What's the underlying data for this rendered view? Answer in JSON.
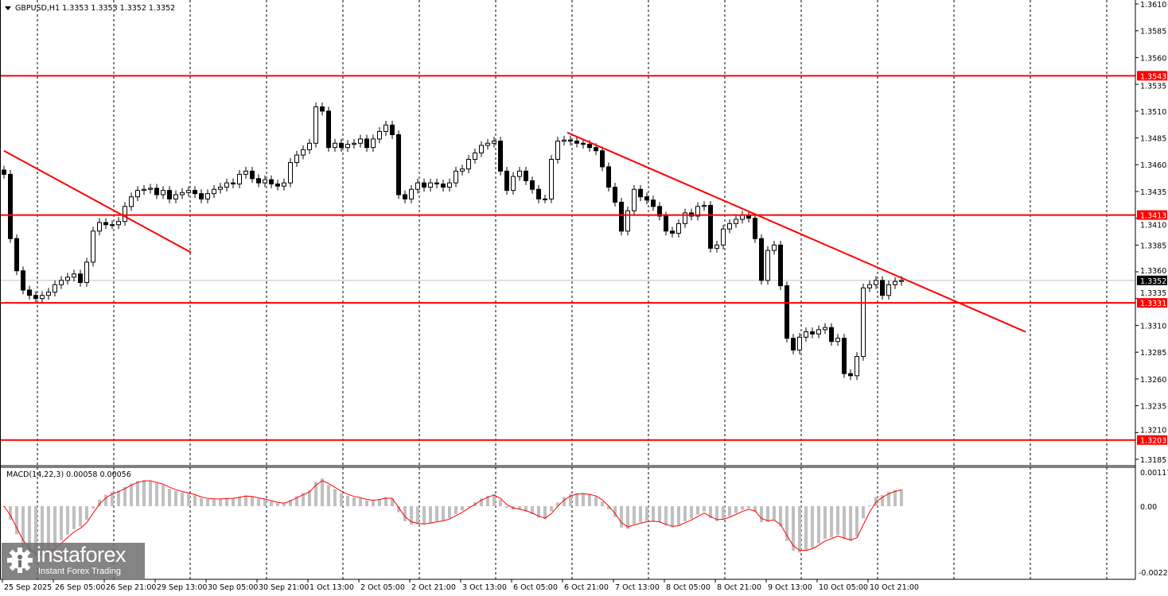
{
  "header": {
    "title": "GBPUSD,H1  1.3353 1.3353 1.3352 1.3352",
    "menu_icon": "triangle-down-icon"
  },
  "logo": {
    "name": "instaforex",
    "tagline": "Instant Forex Trading"
  },
  "colors": {
    "level": "#ff0000",
    "trendline": "#ff0000",
    "bull": "#ffffff",
    "bear": "#000000",
    "grid": "#000000",
    "histogram": "#c0c0c0",
    "signal": "#ff0000",
    "price_line": "#c0c0c0"
  },
  "chart_data": [
    {
      "type": "candlestick",
      "symbol": "GBPUSD",
      "timeframe": "H1",
      "ylim": [
        1.3185,
        1.361
      ],
      "y_ticks": [
        "1.3610",
        "1.3585",
        "1.3560",
        "1.3535",
        "1.3510",
        "1.3485",
        "1.3460",
        "1.3435",
        "1.3410",
        "1.3385",
        "1.3360",
        "1.3335",
        "1.3310",
        "1.3285",
        "1.3260",
        "1.3235",
        "1.3210",
        "1.3185"
      ],
      "x_ticks": [
        "25 Sep 2025",
        "26 Sep 05:00",
        "26 Sep 21:00",
        "29 Sep 13:00",
        "30 Sep 05:00",
        "30 Sep 21:00",
        "1 Oct 13:00",
        "2 Oct 05:00",
        "2 Oct 21:00",
        "3 Oct 13:00",
        "6 Oct 05:00",
        "6 Oct 21:00",
        "7 Oct 13:00",
        "8 Oct 05:00",
        "8 Oct 21:00",
        "9 Oct 13:00",
        "10 Oct 05:00",
        "10 Oct 21:00"
      ],
      "grid": "vertical dashed",
      "close": [
        1.3451,
        1.3391,
        1.3361,
        1.3343,
        1.3338,
        1.3335,
        1.3338,
        1.3341,
        1.3348,
        1.3352,
        1.3355,
        1.3358,
        1.335,
        1.3369,
        1.3398,
        1.3406,
        1.3404,
        1.3404,
        1.3407,
        1.3421,
        1.343,
        1.3436,
        1.3437,
        1.3438,
        1.3432,
        1.3436,
        1.3428,
        1.3432,
        1.3434,
        1.3436,
        1.3433,
        1.3428,
        1.3433,
        1.3437,
        1.3439,
        1.3443,
        1.3442,
        1.3451,
        1.3454,
        1.3447,
        1.3443,
        1.3446,
        1.3442,
        1.344,
        1.3443,
        1.3462,
        1.3469,
        1.3474,
        1.348,
        1.3514,
        1.351,
        1.3476,
        1.348,
        1.3476,
        1.3479,
        1.348,
        1.3484,
        1.3476,
        1.3484,
        1.3491,
        1.3497,
        1.3488,
        1.3432,
        1.3428,
        1.3437,
        1.3443,
        1.3439,
        1.3443,
        1.3442,
        1.3439,
        1.3443,
        1.3454,
        1.3456,
        1.3465,
        1.3471,
        1.3478,
        1.348,
        1.3482,
        1.3454,
        1.3436,
        1.3449,
        1.3454,
        1.3445,
        1.3437,
        1.3428,
        1.3428,
        1.3465,
        1.3482,
        1.3483,
        1.3482,
        1.348,
        1.3479,
        1.3476,
        1.3473,
        1.3458,
        1.3439,
        1.3425,
        1.3398,
        1.3417,
        1.3437,
        1.343,
        1.3427,
        1.3421,
        1.3412,
        1.3398,
        1.3396,
        1.3405,
        1.3415,
        1.3412,
        1.3421,
        1.3422,
        1.3382,
        1.3385,
        1.34,
        1.3405,
        1.3409,
        1.3413,
        1.341,
        1.3391,
        1.3352,
        1.338,
        1.3385,
        1.3347,
        1.3298,
        1.3287,
        1.3299,
        1.3304,
        1.3302,
        1.3306,
        1.3308,
        1.3295,
        1.3298,
        1.3265,
        1.3263,
        1.3281,
        1.3345,
        1.3348,
        1.3352,
        1.3338,
        1.3348,
        1.3351,
        1.3352
      ],
      "levels": [
        {
          "price": 1.3543,
          "label": "1.3543"
        },
        {
          "price": 1.3413,
          "label": "1.3413"
        },
        {
          "price": 1.3331,
          "label": "1.3331"
        },
        {
          "price": 1.3203,
          "label": "1.3203"
        }
      ],
      "current_price": {
        "price": 1.3352,
        "label": "1.3352"
      },
      "trendlines": [
        {
          "start": {
            "bar": 0,
            "price": 1.3473
          },
          "end": {
            "bar": 29.4,
            "price": 1.3378
          }
        },
        {
          "start": {
            "bar": 88.5,
            "price": 1.349
          },
          "end": {
            "bar": 160.5,
            "price": 1.3304
          }
        }
      ]
    },
    {
      "type": "macd",
      "label": "MACD(14,22,3) 0.00058 0.00056",
      "params": [
        14,
        22,
        3
      ],
      "macd_value": 0.00058,
      "signal_value": 0.00056,
      "ylim": [
        -0.00221,
        0.00117
      ],
      "y_ticks": [
        "0.00117",
        "0.00",
        "-0.00221"
      ]
    }
  ]
}
